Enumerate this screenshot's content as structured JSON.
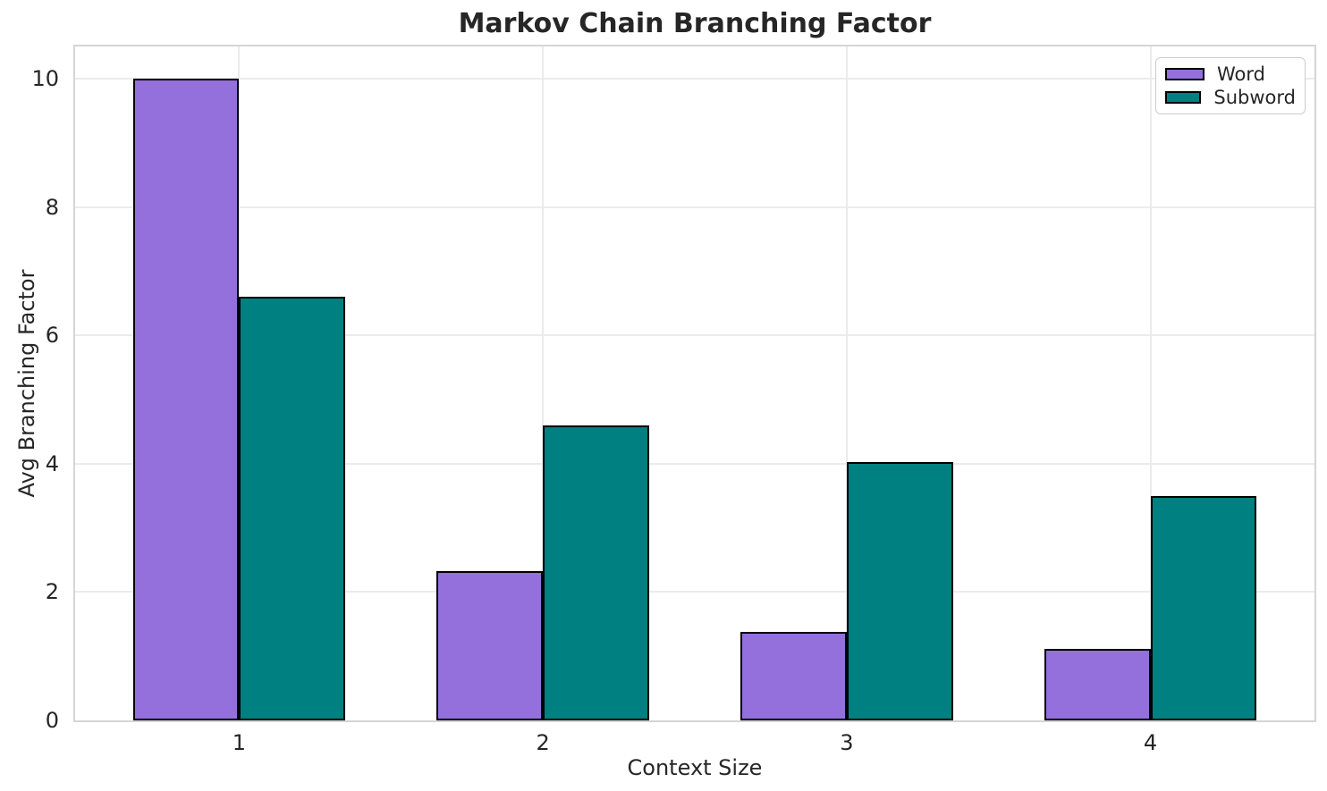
{
  "chart_data": {
    "type": "bar",
    "title": "Markov Chain Branching Factor",
    "xlabel": "Context Size",
    "ylabel": "Avg Branching Factor",
    "categories": [
      "1",
      "2",
      "3",
      "4"
    ],
    "series": [
      {
        "name": "Word",
        "color": "#9370db",
        "values": [
          10.0,
          2.33,
          1.38,
          1.12
        ]
      },
      {
        "name": "Subword",
        "color": "#008080",
        "values": [
          6.6,
          4.6,
          4.02,
          3.5
        ]
      }
    ],
    "bar_width": 0.35,
    "bar_edge_color": "#000000",
    "xlim": [
      0.46,
      4.54
    ],
    "ylim": [
      0,
      10.5
    ],
    "yticks": [
      0,
      2,
      4,
      6,
      8,
      10
    ],
    "grid": true,
    "grid_color": "#ebebeb",
    "spine_color": "#d5d5d5",
    "text_color": "#262626",
    "legend_position": "upper right"
  }
}
